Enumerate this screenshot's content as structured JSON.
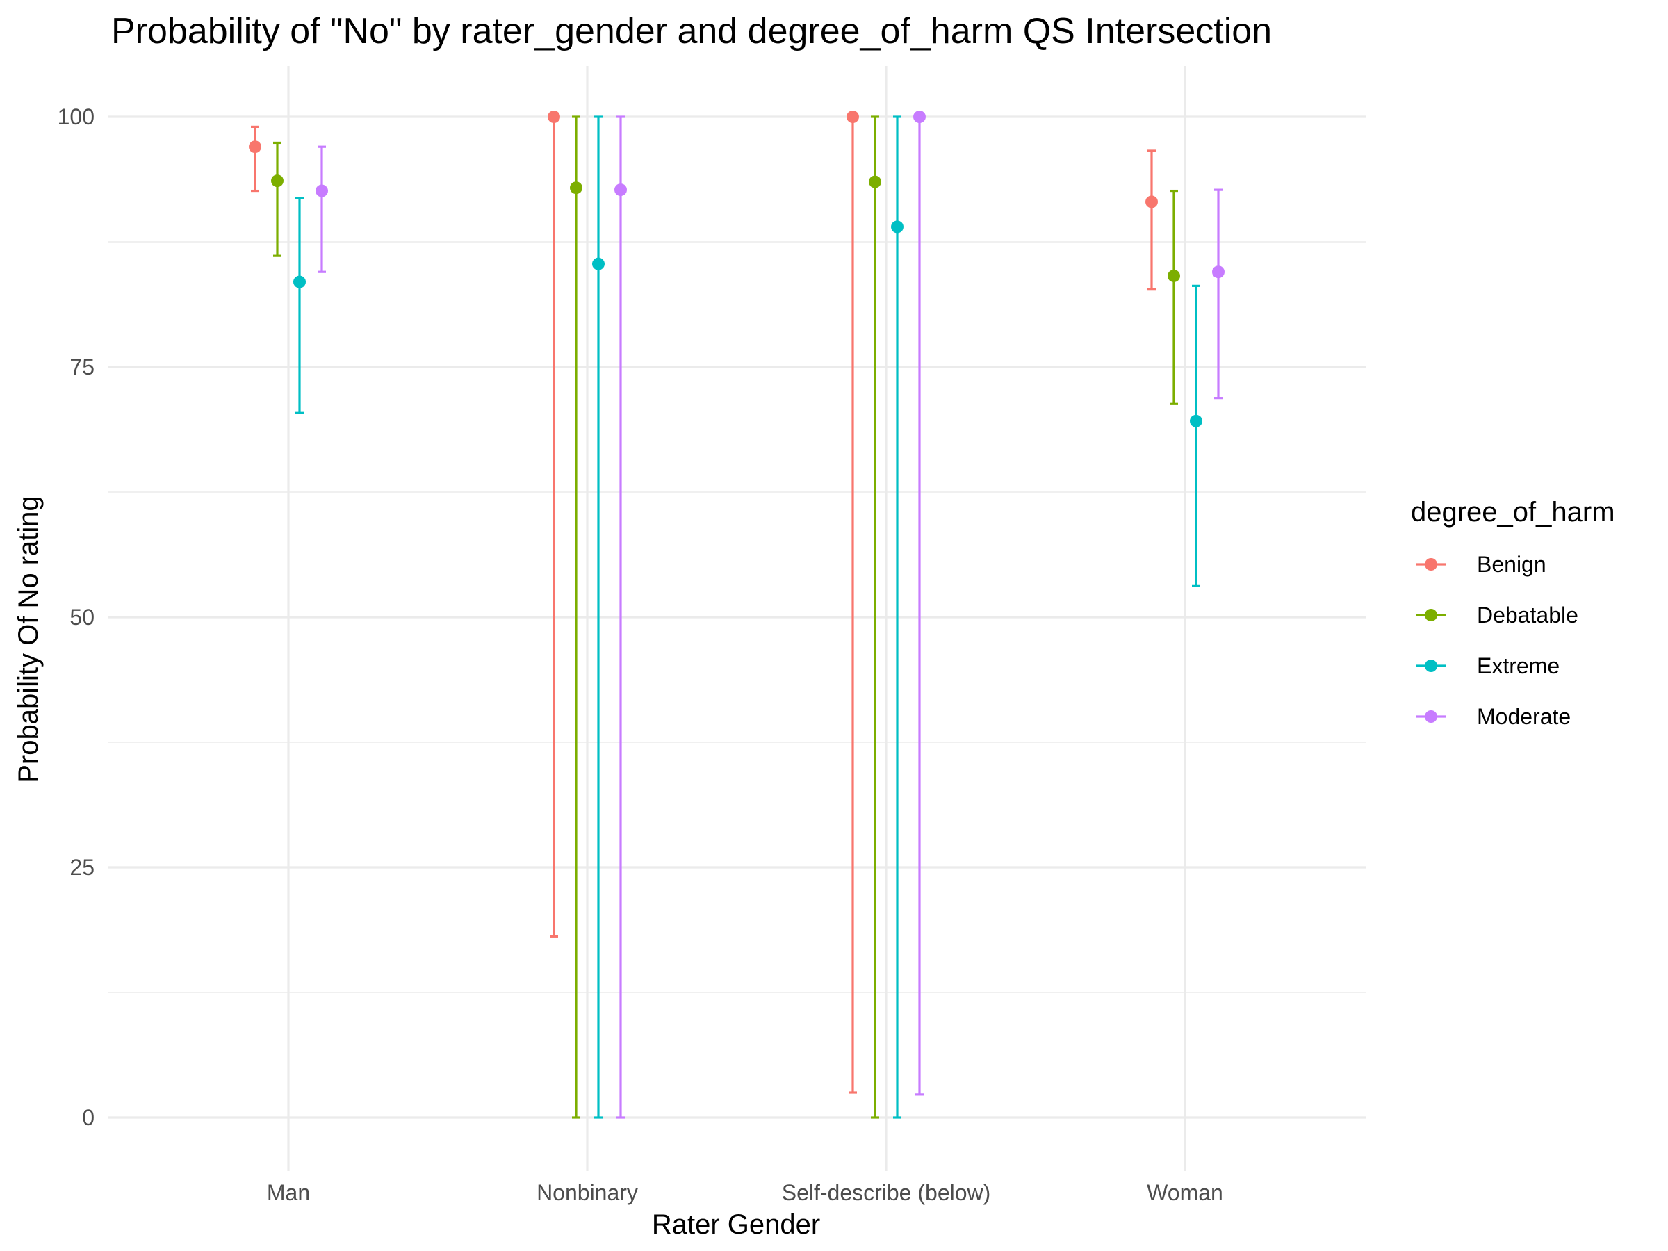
{
  "chart_data": {
    "type": "errorbar",
    "title": "Probability of \"No\" by rater_gender and  degree_of_harm  QS Intersection",
    "xlabel": "Rater Gender",
    "ylabel": "Probability Of No rating",
    "categories": [
      "Man",
      "Nonbinary",
      "Self-describe (below)",
      "Woman"
    ],
    "ylim": [
      -5,
      105
    ],
    "yticks": [
      0,
      25,
      50,
      75,
      100
    ],
    "grid": true,
    "legend": {
      "title": "degree_of_harm",
      "position": "right"
    },
    "series": [
      {
        "name": "Benign",
        "color": "#F8766D",
        "values": [
          97.0,
          100.0,
          100.0,
          91.5
        ],
        "lower": [
          92.6,
          18.1,
          2.5,
          82.8
        ],
        "upper": [
          99.0,
          100.0,
          100.0,
          96.6
        ]
      },
      {
        "name": "Debatable",
        "color": "#7CAE00",
        "values": [
          93.6,
          92.9,
          93.5,
          84.1
        ],
        "lower": [
          86.1,
          0.0,
          0.0,
          71.3
        ],
        "upper": [
          97.4,
          100.0,
          100.0,
          92.6
        ]
      },
      {
        "name": "Extreme",
        "color": "#00BFC4",
        "values": [
          83.5,
          85.3,
          89.0,
          69.6
        ],
        "lower": [
          70.4,
          0.0,
          0.0,
          53.1
        ],
        "upper": [
          91.9,
          100.0,
          100.0,
          83.1
        ]
      },
      {
        "name": "Moderate",
        "color": "#C77CFF",
        "values": [
          92.6,
          92.7,
          100.0,
          84.5
        ],
        "lower": [
          84.5,
          0.0,
          2.3,
          71.9
        ],
        "upper": [
          97.0,
          100.0,
          100.0,
          92.7
        ]
      }
    ]
  }
}
